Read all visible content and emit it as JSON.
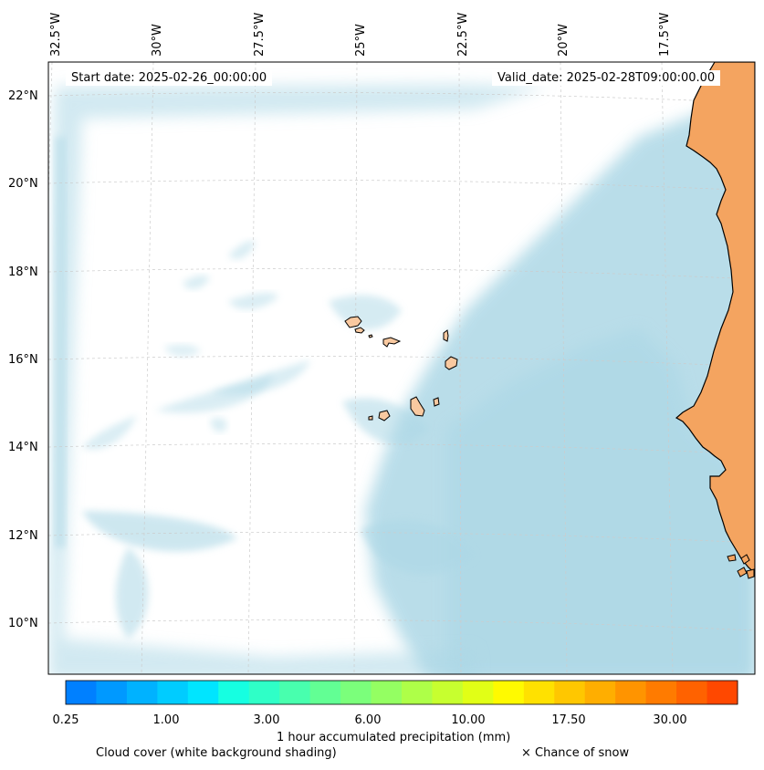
{
  "map": {
    "start_date": "Start date: 2025-02-26_00:00:00",
    "valid_date": "Valid_date: 2025-02-28T09:00:00.00",
    "lon_ticks": [
      "32.5°W",
      "30°W",
      "27.5°W",
      "25°W",
      "22.5°W",
      "20°W",
      "17.5°W"
    ],
    "lat_ticks": [
      "22°N",
      "20°N",
      "18°N",
      "16°N",
      "14°N",
      "12°N",
      "10°N"
    ],
    "colors": {
      "land": "#f4a460",
      "cloud": "#add8e6",
      "coast": "#000000",
      "grid": "#cccccc"
    }
  },
  "colorbar": {
    "colors": [
      "#0080ff",
      "#0099ff",
      "#00b2ff",
      "#00ccff",
      "#00e5ff",
      "#16ffe1",
      "#2fffc7",
      "#48ffae",
      "#62ff94",
      "#7bff7b",
      "#94ff62",
      "#aeff48",
      "#c7ff2f",
      "#e1ff16",
      "#fffa00",
      "#ffe100",
      "#ffc700",
      "#ffae00",
      "#ff9400",
      "#ff7b00",
      "#ff6200",
      "#ff4800"
    ],
    "ticks": [
      "0.25",
      "1.00",
      "3.00",
      "6.00",
      "10.00",
      "17.50",
      "30.00"
    ],
    "label": "1 hour accumulated precipitation (mm)"
  },
  "captions": {
    "cloud": "Cloud cover (white background shading)",
    "snow": "× Chance of snow"
  }
}
